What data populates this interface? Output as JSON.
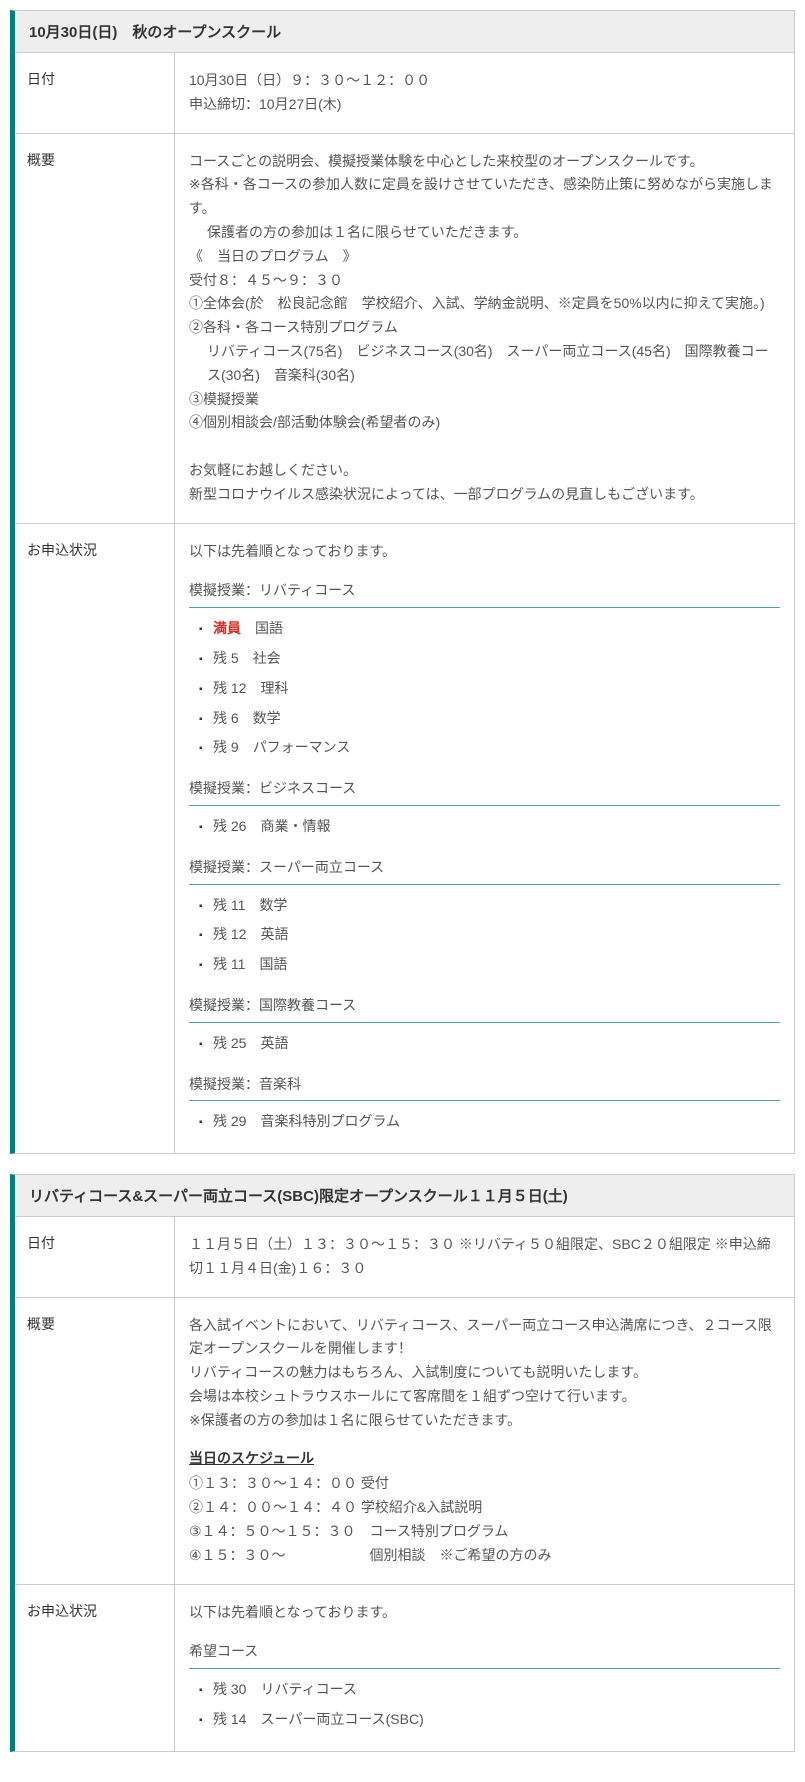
{
  "colors": {
    "accent": "#008080",
    "underline": "#4aa5a5",
    "border": "#cccccc",
    "headerBg": "#eeeeee",
    "text": "#333333",
    "bodyText": "#555555",
    "full": "#d93025"
  },
  "labels": {
    "date": "日付",
    "overview": "概要",
    "status": "お申込状況"
  },
  "event1": {
    "title": "10月30日(日)　秋のオープンスクール",
    "dateLine1": "10月30日（日）９：３０～１２：００",
    "dateLine2": "申込締切：10月27日(木)",
    "ov": {
      "l1": "コースごとの説明会、模擬授業体験を中心とした来校型のオープンスクールです。",
      "l2": "※各科・各コースの参加人数に定員を設けさせていただき、感染防止策に努めながら実施します。",
      "l3": "保護者の方の参加は１名に限らせていただきます。",
      "l4": "《　当日のプログラム　》",
      "l5": "受付８：４５～９：３０",
      "l6": "①全体会(於　松良記念館　学校紹介、入試、学納金説明、※定員を50%以内に抑えて実施。)",
      "l7": "②各科・各コース特別プログラム",
      "l8": "リバティコース(75名)　ビジネスコース(30名)　スーパー両立コース(45名)　国際教養コース(30名)　音楽科(30名)",
      "l9": "③模擬授業",
      "l10": "④個別相談会/部活動体験会(希望者のみ)",
      "l11": "お気軽にお越しください。",
      "l12": "新型コロナウイルス感染状況によっては、一部プログラムの見直しもございます。"
    },
    "status": {
      "intro": "以下は先着順となっております。",
      "sections": [
        {
          "title": "模擬授業：リバティコース",
          "items": [
            {
              "full": true,
              "fullLabel": "満員",
              "name": "国語"
            },
            {
              "remain": "残 5",
              "name": "社会"
            },
            {
              "remain": "残 12",
              "name": "理科"
            },
            {
              "remain": "残 6",
              "name": "数学"
            },
            {
              "remain": "残 9",
              "name": "パフォーマンス"
            }
          ]
        },
        {
          "title": "模擬授業：ビジネスコース",
          "items": [
            {
              "remain": "残 26",
              "name": "商業・情報"
            }
          ]
        },
        {
          "title": "模擬授業：スーパー両立コース",
          "items": [
            {
              "remain": "残 11",
              "name": "数学"
            },
            {
              "remain": "残 12",
              "name": "英語"
            },
            {
              "remain": "残 11",
              "name": "国語"
            }
          ]
        },
        {
          "title": "模擬授業：国際教養コース",
          "items": [
            {
              "remain": "残 25",
              "name": "英語"
            }
          ]
        },
        {
          "title": "模擬授業：音楽科",
          "items": [
            {
              "remain": "残 29",
              "name": "音楽科特別プログラム"
            }
          ]
        }
      ]
    }
  },
  "event2": {
    "title": "リバティコース&スーパー両立コース(SBC)限定オープンスクール１１月５日(土)",
    "dateLine1": "１１月５日（土）１３：３０～１５：３０ ※リバティ５０組限定、SBC２０組限定 ※申込締切１１月４日(金)１６：３０",
    "ov": {
      "l1": "各入試イベントにおいて、リバティコース、スーパー両立コース申込満席につき、２コース限定オープンスクールを開催します！",
      "l2": "リバティコースの魅力はもちろん、入試制度についても説明いたします。",
      "l3": "会場は本校シュトラウスホールにて客席間を１組ずつ空けて行います。",
      "l4": "※保護者の方の参加は１名に限らせていただきます。",
      "scheduleTitle": "当日のスケジュール",
      "s1": "①１３：３０～１４：００ 受付",
      "s2": "②１４：００～１４：４０ 学校紹介&入試説明",
      "s3": "③１４：５０～１５：３０　コース特別プログラム",
      "s4": "④１５：３０～　　　　　　個別相談　※ご希望の方のみ"
    },
    "status": {
      "intro": "以下は先着順となっております。",
      "sectionTitle": "希望コース",
      "items": [
        {
          "remain": "残 30",
          "name": "リバティコース"
        },
        {
          "remain": "残 14",
          "name": "スーパー両立コース(SBC)"
        }
      ]
    }
  }
}
